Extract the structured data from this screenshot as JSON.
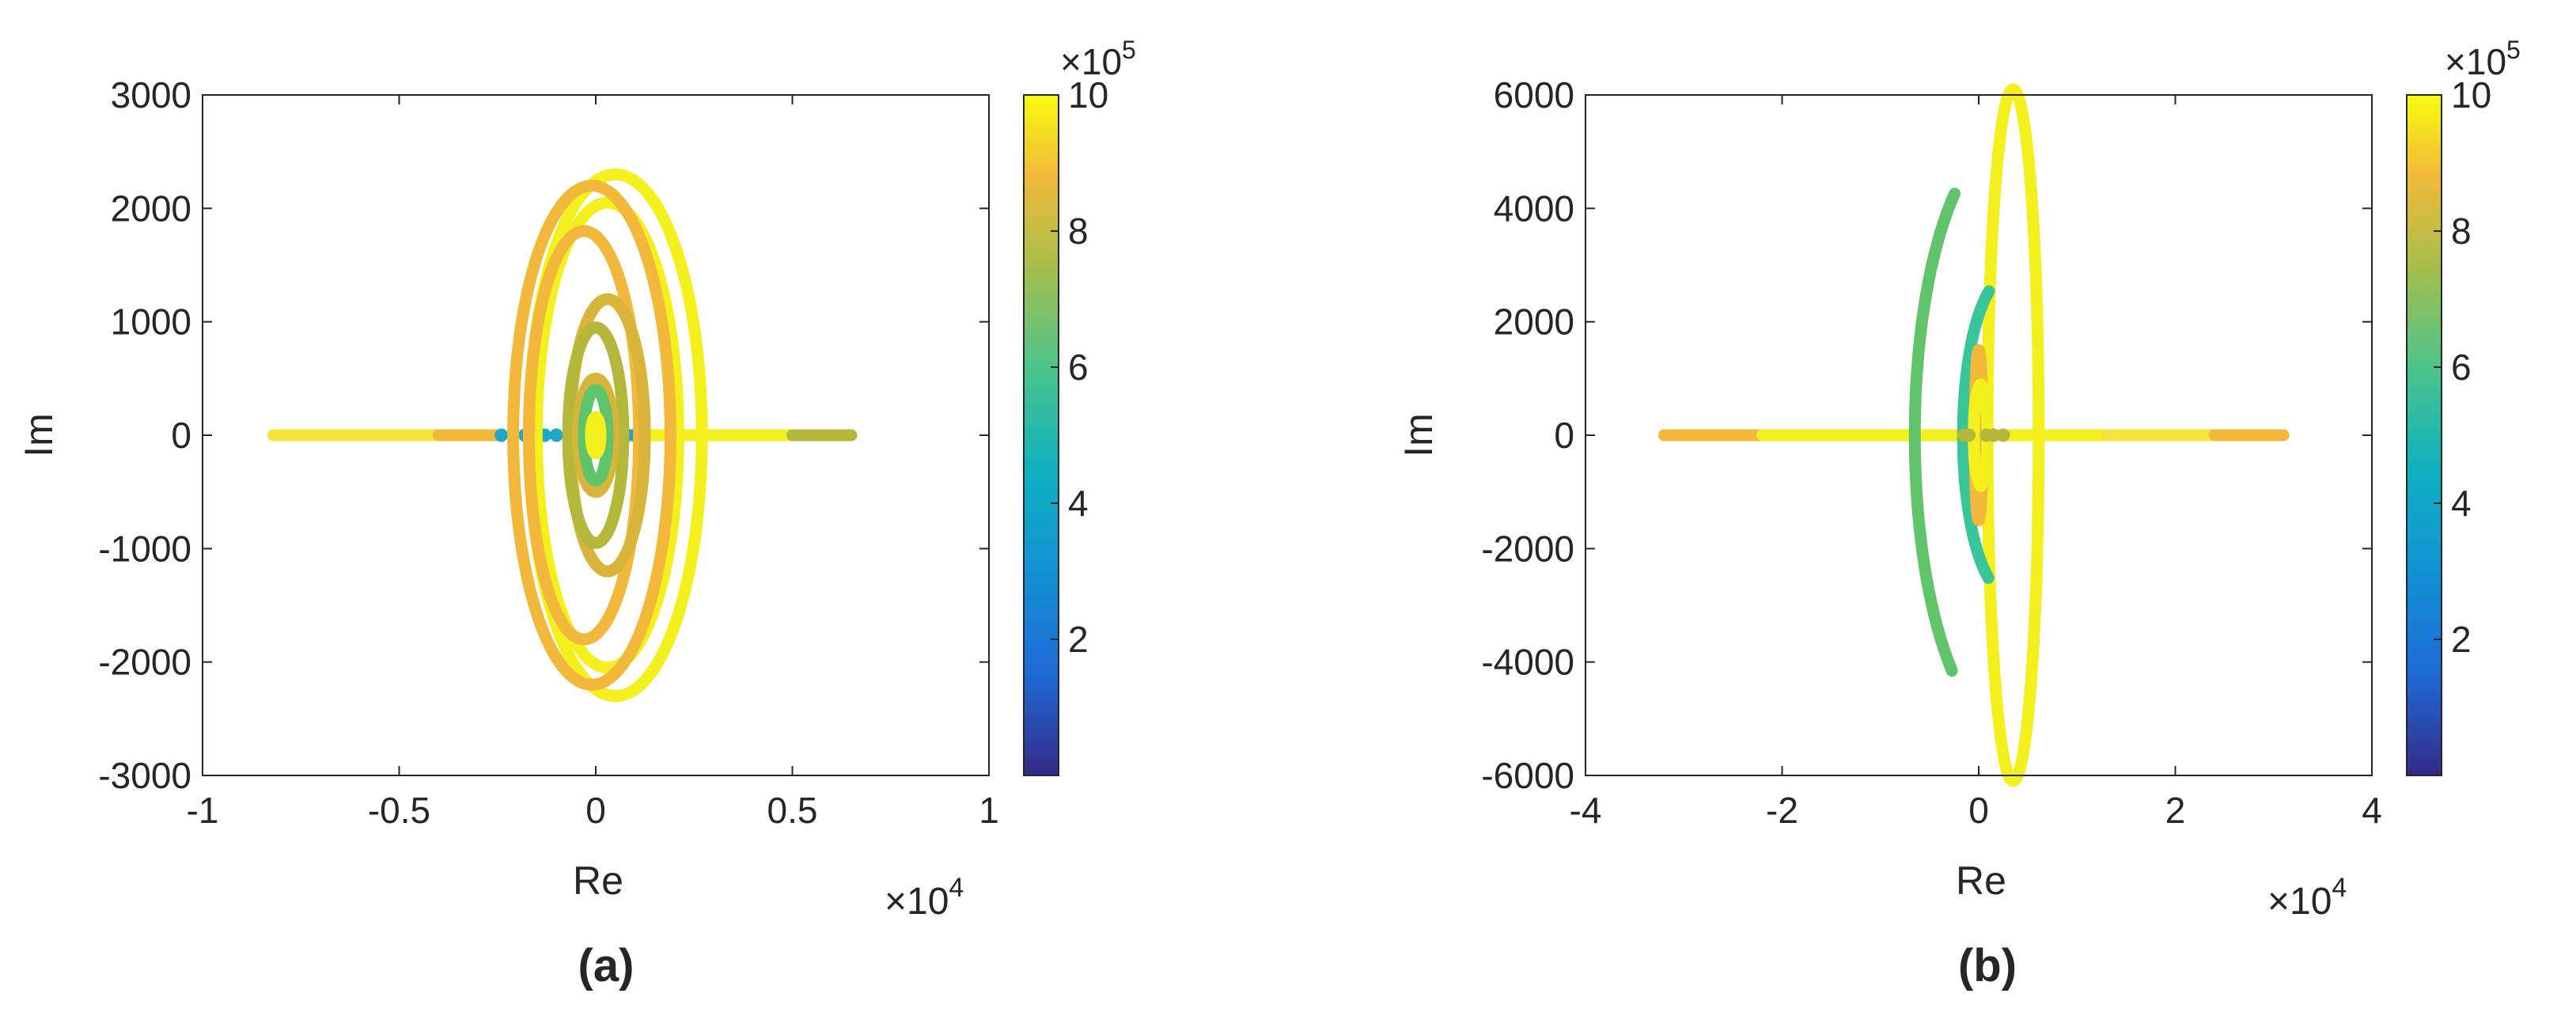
{
  "colorbar": {
    "colormap": "parula",
    "min": 0,
    "max": 10,
    "ticks": [
      2,
      4,
      6,
      8,
      10
    ],
    "tick_labels": [
      "2",
      "4",
      "6",
      "8",
      "10"
    ],
    "multiplier_label": "×10",
    "multiplier_exponent": "5"
  },
  "colors": {
    "yellow": "#F4F01E",
    "light_yellow": "#F6E43A",
    "orange": "#F2B83C",
    "ochre": "#D8B43A",
    "olive": "#B4B83A",
    "green": "#5FC46A",
    "teal": "#3AC49A",
    "cyan": "#1FA7C8"
  },
  "chart_data": [
    {
      "type": "scatter",
      "panel_label": "(a)",
      "xlabel": "Re",
      "ylabel": "Im",
      "xlim": [
        -10000,
        10000
      ],
      "ylim": [
        -3000,
        3000
      ],
      "x_ticks": [
        -10000,
        -5000,
        0,
        5000,
        10000
      ],
      "x_tick_labels": [
        "-1",
        "-0.5",
        "0",
        "0.5",
        "1"
      ],
      "x_multiplier_label": "×10",
      "x_multiplier_exponent": "4",
      "y_ticks": [
        -3000,
        -2000,
        -1000,
        0,
        1000,
        2000,
        3000
      ],
      "y_tick_labels": [
        "-3000",
        "-2000",
        "-1000",
        "0",
        "1000",
        "2000",
        "3000"
      ],
      "series": [
        {
          "shape": "segment",
          "x0": -8200,
          "x1": -4000,
          "y": 0,
          "color_key": "light_yellow"
        },
        {
          "shape": "segment",
          "x0": -4000,
          "x1": -2400,
          "y": 0,
          "color_key": "orange"
        },
        {
          "shape": "segment",
          "x0": 1200,
          "x1": 5000,
          "y": 0,
          "color_key": "yellow"
        },
        {
          "shape": "segment",
          "x0": 5000,
          "x1": 6500,
          "y": 0,
          "color_key": "olive"
        },
        {
          "shape": "dots",
          "x": [
            -2400,
            -1800,
            -1300,
            -1000,
            800,
            1000,
            1200
          ],
          "y": 0,
          "color_key": "cyan"
        },
        {
          "shape": "ellipse",
          "cx": 500,
          "cy": 0,
          "rx": 2200,
          "ry": 2300,
          "color_key": "yellow"
        },
        {
          "shape": "ellipse",
          "cx": 300,
          "cy": 0,
          "rx": 1800,
          "ry": 2050,
          "color_key": "yellow"
        },
        {
          "shape": "ellipse",
          "cx": -100,
          "cy": 0,
          "rx": 2000,
          "ry": 2200,
          "color_key": "orange"
        },
        {
          "shape": "ellipse",
          "cx": -300,
          "cy": 0,
          "rx": 1400,
          "ry": 1800,
          "color_key": "orange"
        },
        {
          "shape": "ellipse",
          "cx": 300,
          "cy": 0,
          "rx": 950,
          "ry": 1200,
          "color_key": "ochre"
        },
        {
          "shape": "ellipse",
          "cx": 0,
          "cy": 0,
          "rx": 700,
          "ry": 950,
          "color_key": "olive"
        },
        {
          "shape": "ellipse",
          "cx": 0,
          "cy": 0,
          "rx": 450,
          "ry": 500,
          "color_key": "ochre"
        },
        {
          "shape": "ellipse",
          "cx": 0,
          "cy": 0,
          "rx": 300,
          "ry": 400,
          "color_key": "green"
        },
        {
          "shape": "ellipse",
          "cx": 0,
          "cy": 0,
          "rx": 120,
          "ry": 160,
          "color_key": "yellow"
        }
      ]
    },
    {
      "type": "scatter",
      "panel_label": "(b)",
      "xlabel": "Re",
      "ylabel": "Im",
      "xlim": [
        -40000,
        40000
      ],
      "ylim": [
        -6000,
        6000
      ],
      "x_ticks": [
        -40000,
        -20000,
        0,
        20000,
        40000
      ],
      "x_tick_labels": [
        "-4",
        "-2",
        "0",
        "2",
        "4"
      ],
      "x_multiplier_label": "×10",
      "x_multiplier_exponent": "4",
      "y_ticks": [
        -6000,
        -4000,
        -2000,
        0,
        2000,
        4000,
        6000
      ],
      "y_tick_labels": [
        "-6000",
        "-4000",
        "-2000",
        "0",
        "2000",
        "4000",
        "6000"
      ],
      "series": [
        {
          "shape": "segment",
          "x0": -32000,
          "x1": -22000,
          "y": 0,
          "color_key": "orange"
        },
        {
          "shape": "segment",
          "x0": -22000,
          "x1": -5000,
          "y": 0,
          "color_key": "yellow"
        },
        {
          "shape": "segment",
          "x0": -5000,
          "x1": 13000,
          "y": 0,
          "color_key": "yellow"
        },
        {
          "shape": "segment",
          "x0": 13000,
          "x1": 31000,
          "y": 0,
          "color_key": "light_yellow"
        },
        {
          "shape": "segment",
          "x0": 24000,
          "x1": 31000,
          "y": 0,
          "color_key": "orange"
        },
        {
          "shape": "arc",
          "cx": 3000,
          "cy": 0,
          "rx": 9500,
          "ry": 5200,
          "deg_from": 125,
          "deg_to": 235,
          "color_key": "green"
        },
        {
          "shape": "ellipse",
          "cx": 3500,
          "cy": 0,
          "rx": 2600,
          "ry": 6100,
          "color_key": "yellow"
        },
        {
          "shape": "arc",
          "cx": 3000,
          "cy": 0,
          "rx": 4600,
          "ry": 2800,
          "deg_from": 115,
          "deg_to": 245,
          "color_key": "teal"
        },
        {
          "shape": "ellipse",
          "cx": 0,
          "cy": 0,
          "rx": 400,
          "ry": 1500,
          "color_key": "orange"
        },
        {
          "shape": "ellipse",
          "cx": 200,
          "cy": 0,
          "rx": 700,
          "ry": 900,
          "color_key": "yellow"
        },
        {
          "shape": "dots",
          "x": [
            -1500,
            -1000,
            800,
            1500,
            2500
          ],
          "y": 0,
          "color_key": "olive"
        }
      ]
    }
  ]
}
